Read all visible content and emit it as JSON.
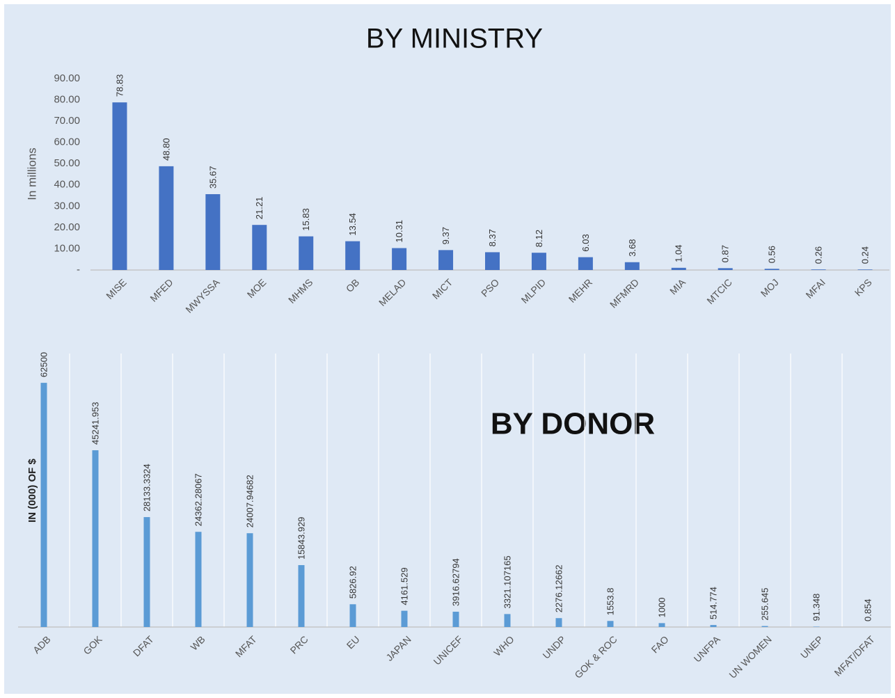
{
  "chart_data": [
    {
      "type": "bar",
      "title": "BY MINISTRY",
      "ylabel": "In millions",
      "categories": [
        "MISE",
        "MFED",
        "MWYSSA",
        "MOE",
        "MHMS",
        "OB",
        "MELAD",
        "MICT",
        "PSO",
        "MLPID",
        "MEHR",
        "MFMRD",
        "MIA",
        "MTCIC",
        "MOJ",
        "MFAI",
        "KPS"
      ],
      "values": [
        78.83,
        48.8,
        35.67,
        21.21,
        15.83,
        13.54,
        10.31,
        9.37,
        8.37,
        8.12,
        6.03,
        3.68,
        1.04,
        0.87,
        0.56,
        0.26,
        0.24
      ],
      "value_labels": [
        "78.83",
        "48.80",
        "35.67",
        "21.21",
        "15.83",
        "13.54",
        "10.31",
        "9.37",
        "8.37",
        "8.12",
        "6.03",
        "3.68",
        "1.04",
        "0.87",
        "0.56",
        "0.26",
        "0.24"
      ],
      "color": "#4472c4",
      "ylim": [
        0,
        90
      ],
      "yticks": [
        {
          "value": 0,
          "label": "-"
        },
        {
          "value": 10,
          "label": "10.00"
        },
        {
          "value": 20,
          "label": "20.00"
        },
        {
          "value": 30,
          "label": "30.00"
        },
        {
          "value": 40,
          "label": "40.00"
        },
        {
          "value": 50,
          "label": "50.00"
        },
        {
          "value": 60,
          "label": "60.00"
        },
        {
          "value": 70,
          "label": "70.00"
        },
        {
          "value": 80,
          "label": "80.00"
        },
        {
          "value": 90,
          "label": "90.00"
        }
      ],
      "grid": false
    },
    {
      "type": "bar",
      "title": "BY DONOR",
      "ylabel": "IN (000) OF $",
      "categories": [
        "ADB",
        "GOK",
        "DFAT",
        "WB",
        "MFAT",
        "PRC",
        "EU",
        "JAPAN",
        "UNICEF",
        "WHO",
        "UNDP",
        "GOK & ROC",
        "FAO",
        "UNFPA",
        "UN WOMEN",
        "UNEP",
        "MFAT/DFAT"
      ],
      "values": [
        62500,
        45241.953,
        28133.3324,
        24362.28067,
        24007.94682,
        15843.929,
        5826.92,
        4161.529,
        3916.62794,
        3321.107165,
        2276.12662,
        1553.8,
        1000,
        514.774,
        255.645,
        91.348,
        0.854
      ],
      "color": "#5b9bd5",
      "ylim": [
        0,
        70000
      ],
      "grid": true
    }
  ]
}
